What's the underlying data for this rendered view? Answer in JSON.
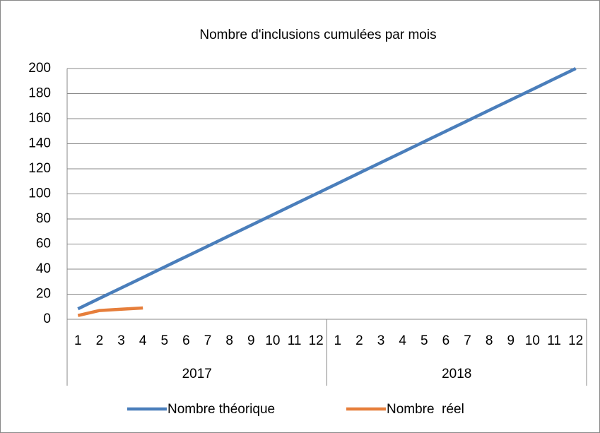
{
  "chart_data": {
    "type": "line",
    "title": "Nombre d'inclusions cumulées par mois",
    "categories": [
      "1",
      "2",
      "3",
      "4",
      "5",
      "6",
      "7",
      "8",
      "9",
      "10",
      "11",
      "12",
      "1",
      "2",
      "3",
      "4",
      "5",
      "6",
      "7",
      "8",
      "9",
      "10",
      "11",
      "12"
    ],
    "groups": [
      "2017",
      "2018"
    ],
    "series": [
      {
        "name": "Nombre théorique",
        "color": "#4a7ebb",
        "values": [
          8.3,
          16.7,
          25,
          33.3,
          41.7,
          50,
          58.3,
          66.7,
          75,
          83.3,
          91.7,
          100,
          108.3,
          116.7,
          125,
          133.3,
          141.7,
          150,
          158.3,
          166.7,
          175,
          183.3,
          191.7,
          200
        ]
      },
      {
        "name": "Nombre  réel",
        "color": "#e67e3b",
        "values": [
          3,
          7,
          8,
          9,
          null,
          null,
          null,
          null,
          null,
          null,
          null,
          null,
          null,
          null,
          null,
          null,
          null,
          null,
          null,
          null,
          null,
          null,
          null,
          null
        ]
      }
    ],
    "ylim": [
      0,
      200
    ],
    "yticks": [
      0,
      20,
      40,
      60,
      80,
      100,
      120,
      140,
      160,
      180,
      200
    ],
    "grid": true,
    "legend": "bottom"
  }
}
